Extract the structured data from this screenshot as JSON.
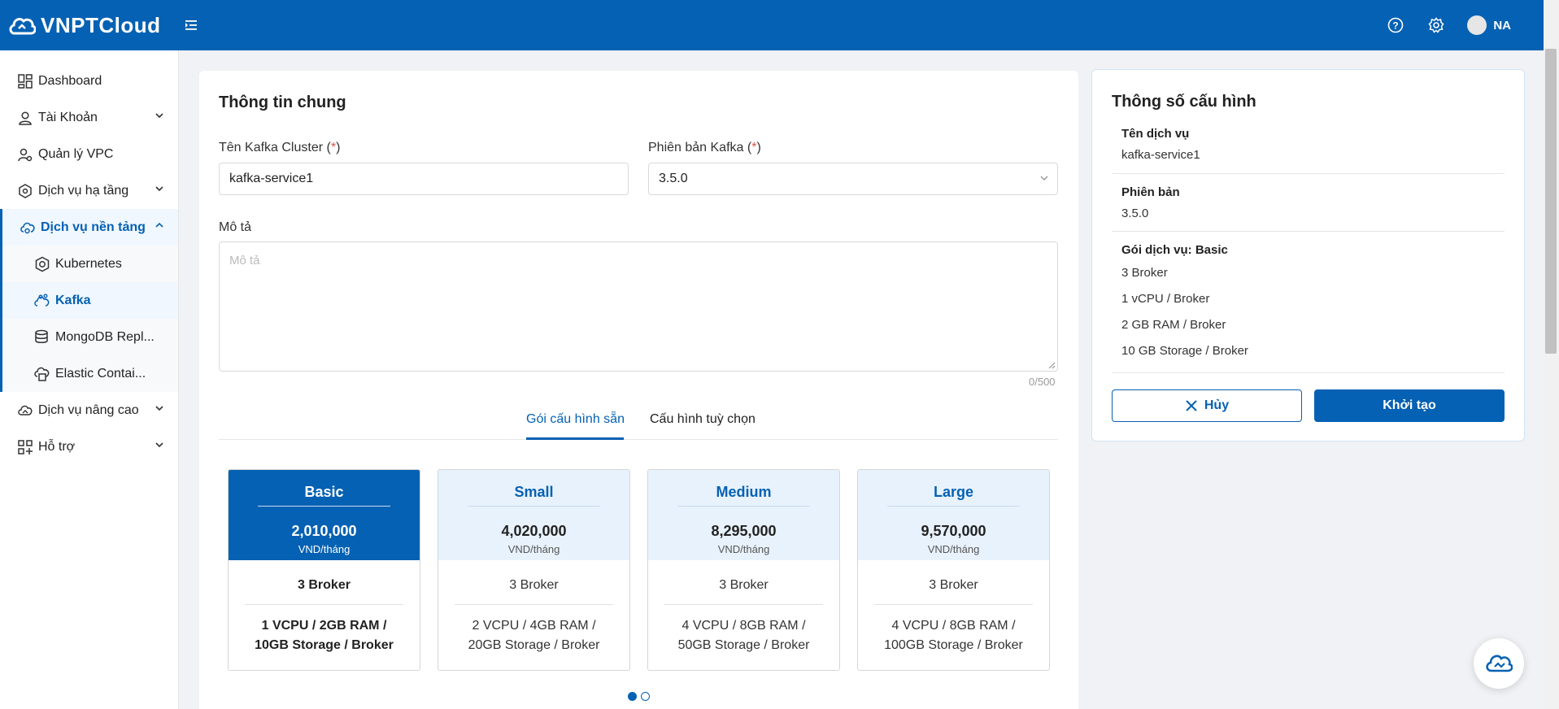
{
  "header": {
    "brand": "VNPTCloud",
    "user_initials": "NA"
  },
  "sidebar": {
    "items": [
      {
        "label": "Dashboard",
        "icon": "dashboard-icon"
      },
      {
        "label": "Tài Khoản",
        "icon": "user-icon"
      },
      {
        "label": "Quản lý VPC",
        "icon": "vpc-icon"
      },
      {
        "label": "Dịch vụ hạ tầng",
        "icon": "infrastructure-icon"
      },
      {
        "label": "Dịch vụ nền tảng",
        "icon": "cloud-platform-icon"
      },
      {
        "label": "Kubernetes",
        "icon": "kubernetes-icon"
      },
      {
        "label": "Kafka",
        "icon": "kafka-icon"
      },
      {
        "label": "MongoDB Repl...",
        "icon": "database-icon"
      },
      {
        "label": "Elastic Contai...",
        "icon": "container-icon"
      },
      {
        "label": "Dịch vụ nâng cao",
        "icon": "cloud-advanced-icon"
      },
      {
        "label": "Hỗ trợ",
        "icon": "support-grid-icon"
      }
    ]
  },
  "form": {
    "section_title": "Thông tin chung",
    "cluster_name_label": "Tên Kafka Cluster (",
    "cluster_name_value": "kafka-service1",
    "version_label": "Phiên bản Kafka (",
    "version_value": "3.5.0",
    "required_mark": "*",
    "required_close": ")",
    "description_label": "Mô tả",
    "description_placeholder": "Mô tả",
    "description_counter": "0/500",
    "tabs": [
      "Gói cấu hình sẵn",
      "Cấu hình tuỳ chọn"
    ]
  },
  "packages": [
    {
      "name": "Basic",
      "price": "2,010,000",
      "unit": "VND/tháng",
      "broker": "3 Broker",
      "spec_line1": "1 VCPU / 2GB RAM /",
      "spec_line2": "10GB Storage / Broker",
      "selected": true
    },
    {
      "name": "Small",
      "price": "4,020,000",
      "unit": "VND/tháng",
      "broker": "3 Broker",
      "spec_line1": "2 VCPU / 4GB RAM /",
      "spec_line2": "20GB Storage / Broker",
      "selected": false
    },
    {
      "name": "Medium",
      "price": "8,295,000",
      "unit": "VND/tháng",
      "broker": "3 Broker",
      "spec_line1": "4 VCPU / 8GB RAM /",
      "spec_line2": "50GB Storage / Broker",
      "selected": false
    },
    {
      "name": "Large",
      "price": "9,570,000",
      "unit": "VND/tháng",
      "broker": "3 Broker",
      "spec_line1": "4 VCPU / 8GB RAM /",
      "spec_line2": "100GB Storage / Broker",
      "selected": false
    }
  ],
  "summary": {
    "title": "Thông số cấu hình",
    "service_name_label": "Tên dịch vụ",
    "service_name_value": "kafka-service1",
    "version_label": "Phiên bản",
    "version_value": "3.5.0",
    "package_label": "Gói dịch vụ: Basic",
    "package_lines": [
      "3 Broker",
      "1 vCPU / Broker",
      "2 GB RAM / Broker",
      "10 GB Storage / Broker"
    ],
    "cancel_label": "Hủy",
    "create_label": "Khởi tạo"
  },
  "colors": {
    "primary": "#0561b3",
    "required": "#d9534f"
  }
}
